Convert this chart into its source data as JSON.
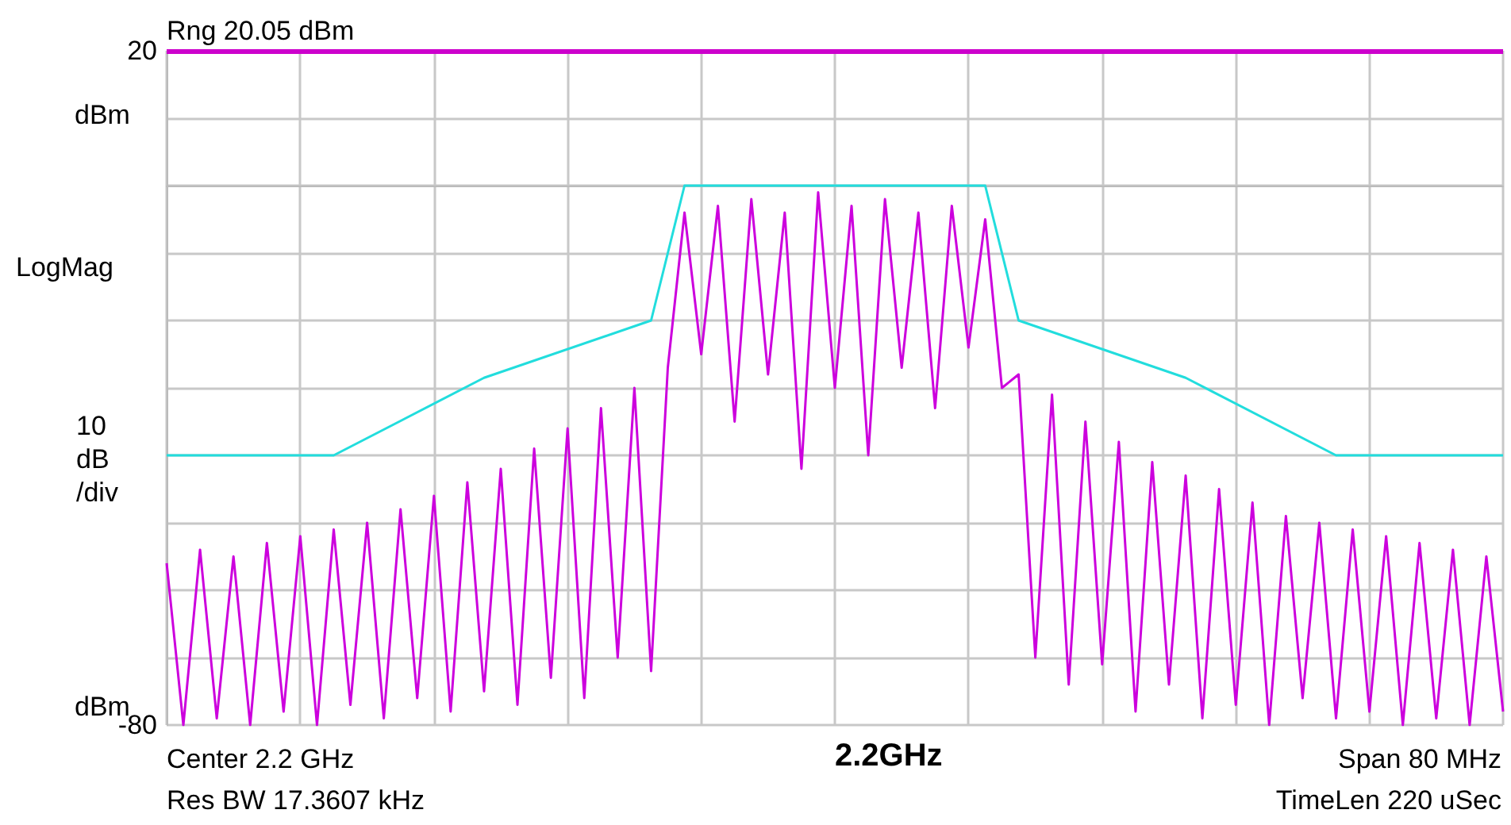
{
  "chart_data": {
    "type": "line",
    "ylabel": "LogMag",
    "annotations": [
      "10\ndB\n/div",
      "Center 2.2 GHz",
      "Res BW 17.3607 kHz",
      "2.2GHz",
      "Span 80 MHz",
      "TimeLen 220 uSec",
      "dBm",
      "dBm"
    ],
    "categories": [
      null,
      null,
      null,
      null,
      null,
      null,
      null,
      null,
      null,
      null,
      null,
      null,
      null,
      null,
      null,
      null,
      null,
      null,
      null,
      null,
      null,
      null,
      null,
      null,
      null,
      null,
      null,
      null,
      null,
      null,
      null,
      null,
      null,
      null,
      null,
      null,
      null,
      null,
      null,
      null,
      null,
      null,
      null,
      null,
      null,
      null,
      null,
      null,
      null,
      null,
      null,
      null,
      null,
      null,
      null,
      null,
      null,
      null,
      null,
      null,
      null,
      null,
      null,
      null,
      null,
      null,
      null,
      null,
      null,
      null,
      null,
      null,
      null,
      null,
      null,
      null,
      null,
      null,
      null,
      null,
      null
    ],
    "ylim": [
      -80,
      20
    ],
    "yticks": [
      -80,
      {
        "value": -70,
        "label": null
      },
      {
        "value": -60,
        "label": null
      },
      {
        "value": -50,
        "label": null
      },
      {
        "value": -40,
        "label": null
      },
      {
        "value": -30,
        "label": null
      },
      {
        "value": -20,
        "label": null
      },
      {
        "value": -10,
        "label": null
      },
      {
        "value": 0,
        "label": null
      },
      {
        "value": 10,
        "label": null
      },
      20
    ],
    "tick_labels": "y",
    "grid": true,
    "marker": "none",
    "line_style": "solid",
    "ref_lines": [
      {
        "axis": "y",
        "value": 20,
        "label": "Rng 20.05 dBm",
        "color": "#cc00cc"
      }
    ],
    "series": [
      {
        "color": "#cc00dd",
        "values": [
          -56,
          -80,
          -54,
          -79,
          -55,
          -80,
          -53,
          -78,
          -52,
          -80,
          -51,
          -77,
          -50,
          -79,
          -48,
          -76,
          -46,
          -78,
          -44,
          -75,
          -42,
          -77,
          -39,
          -73,
          -36,
          -76,
          -33,
          -70,
          -30,
          -72,
          -27,
          -4,
          -25,
          -3,
          -35,
          -2,
          -28,
          -4,
          -42,
          -1,
          -30,
          -3,
          -40,
          -2,
          -27,
          -4,
          -33,
          -3,
          -24,
          -5,
          -30,
          -28,
          -70,
          -31,
          -74,
          -35,
          -71,
          -38,
          -78,
          -41,
          -74,
          -43,
          -79,
          -45,
          -77,
          -47,
          -80,
          -49,
          -76,
          -50,
          -79,
          -51,
          -78,
          -52,
          -80,
          -53,
          -79,
          -54,
          -80,
          -55,
          -78
        ]
      },
      {
        "color": "#22dddd",
        "values": [
          -40,
          null,
          null,
          null,
          null,
          null,
          null,
          null,
          null,
          null,
          -40,
          null,
          null,
          null,
          null,
          null,
          null,
          null,
          null,
          -28.5,
          null,
          null,
          null,
          null,
          null,
          null,
          null,
          null,
          null,
          -20,
          null,
          0,
          null,
          null,
          null,
          null,
          null,
          null,
          null,
          null,
          null,
          null,
          null,
          null,
          null,
          null,
          null,
          null,
          null,
          0,
          null,
          -20,
          null,
          null,
          null,
          null,
          null,
          null,
          null,
          null,
          null,
          -28.5,
          null,
          null,
          null,
          null,
          null,
          null,
          null,
          null,
          -40,
          null,
          null,
          null,
          null,
          null,
          null,
          null,
          null,
          null,
          -40
        ]
      }
    ]
  }
}
